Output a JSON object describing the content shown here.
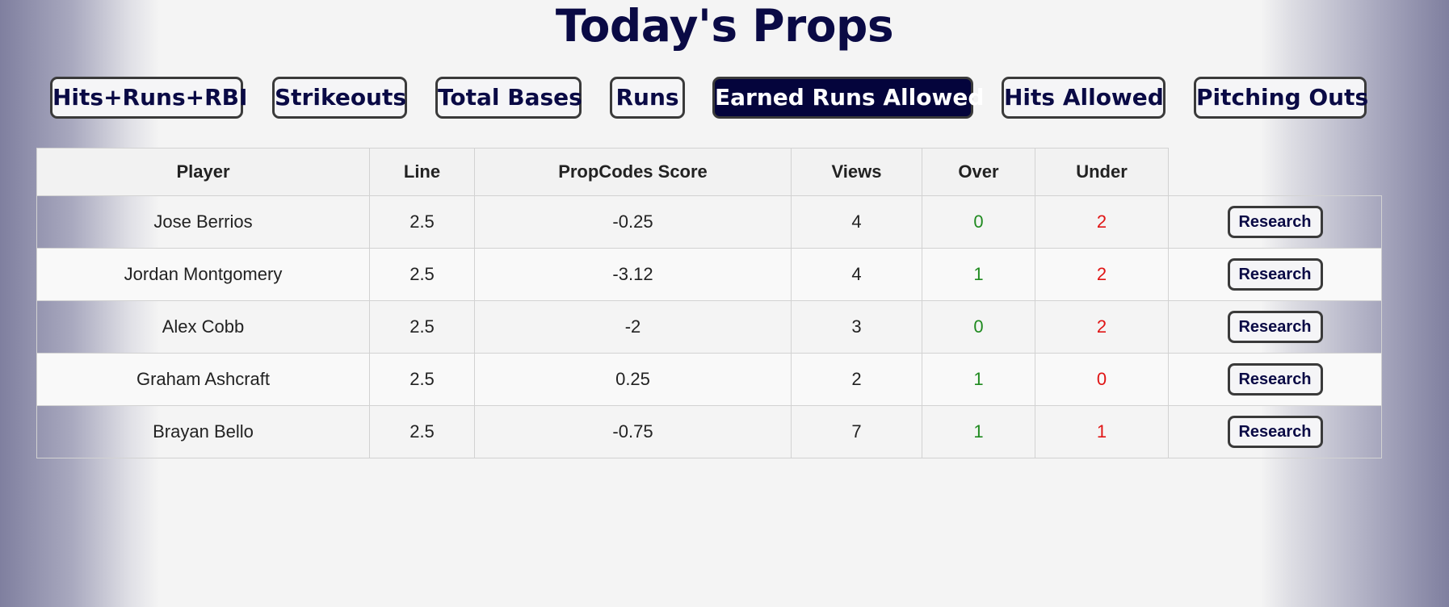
{
  "page": {
    "title": "Today's Props"
  },
  "tabs": [
    {
      "label": "Hits+Runs+RBI",
      "active": false
    },
    {
      "label": "Strikeouts",
      "active": false
    },
    {
      "label": "Total Bases",
      "active": false
    },
    {
      "label": "Runs",
      "active": false
    },
    {
      "label": "Earned Runs Allowed",
      "active": true
    },
    {
      "label": "Hits Allowed",
      "active": false
    },
    {
      "label": "Pitching Outs",
      "active": false
    }
  ],
  "table": {
    "headers": [
      "Player",
      "Line",
      "PropCodes Score",
      "Views",
      "Over",
      "Under"
    ],
    "action_label": "Research",
    "rows": [
      {
        "player": "Jose Berrios",
        "line": "2.5",
        "score": "-0.25",
        "views": "4",
        "over": "0",
        "under": "2"
      },
      {
        "player": "Jordan Montgomery",
        "line": "2.5",
        "score": "-3.12",
        "views": "4",
        "over": "1",
        "under": "2"
      },
      {
        "player": "Alex Cobb",
        "line": "2.5",
        "score": "-2",
        "views": "3",
        "over": "0",
        "under": "2"
      },
      {
        "player": "Graham Ashcraft",
        "line": "2.5",
        "score": "0.25",
        "views": "2",
        "over": "1",
        "under": "0"
      },
      {
        "player": "Brayan Bello",
        "line": "2.5",
        "score": "-0.75",
        "views": "7",
        "over": "1",
        "under": "1"
      }
    ]
  },
  "colors": {
    "title": "#0a0a45",
    "active_tab_bg": "#04043c",
    "over": "#1f8a1f",
    "under": "#e01515"
  }
}
